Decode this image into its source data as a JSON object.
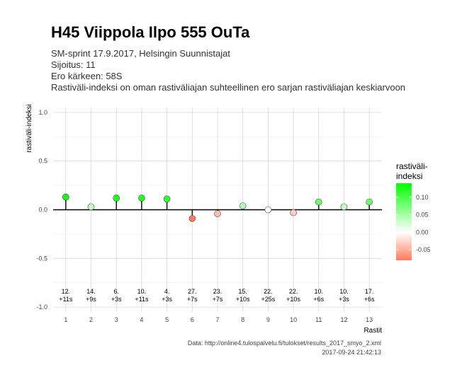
{
  "header": {
    "title": "H45 Viippola Ilpo 555 OuTa",
    "subtitle_lines": [
      "SM-sprint 17.9.2017, Helsingin Suunnistajat",
      "Sijoitus: 11",
      "Ero kärkeen: 58S",
      "Rastiväli-indeksi on oman rastiväliajan suhteellinen ero sarjan rastiväliajan keskiarvoon"
    ]
  },
  "footer": {
    "source": "Data: http://online4.tulospalvelu.fi/tulokset/results_2017_smyo_2.xml",
    "timestamp": "2017-09-24 21:42:13"
  },
  "colors": {
    "high": "#00ff00",
    "mid": "#ffffff",
    "low": "#ff7b5c",
    "point_stroke": "#444444",
    "zero_line": "#000000"
  },
  "chart_data": {
    "type": "scatter",
    "xlabel": "Rastit",
    "ylabel": "rastiväli-indeksi",
    "ylim": [
      -1.05,
      1.05
    ],
    "y_ticks": [
      -1.0,
      -0.5,
      0.0,
      0.5,
      1.0
    ],
    "y_tick_labels": [
      "-1.0",
      "-0.5",
      "0.0",
      "0.5",
      "1.0"
    ],
    "x": [
      1,
      2,
      3,
      4,
      5,
      6,
      7,
      8,
      9,
      10,
      11,
      12,
      13
    ],
    "x_tick_labels": [
      "1",
      "2",
      "3",
      "4",
      "5",
      "6",
      "7",
      "8",
      "9",
      "10",
      "11",
      "12",
      "13"
    ],
    "values": [
      0.13,
      0.03,
      0.12,
      0.12,
      0.11,
      -0.09,
      -0.04,
      0.04,
      0.0,
      -0.03,
      0.08,
      0.03,
      0.08
    ],
    "annotations": [
      [
        "12.",
        "+11s"
      ],
      [
        "14.",
        "+9s"
      ],
      [
        "6.",
        "+3s"
      ],
      [
        "10.",
        "+11s"
      ],
      [
        "4.",
        "+3s"
      ],
      [
        "27.",
        "+7s"
      ],
      [
        "23.",
        "+7s"
      ],
      [
        "15.",
        "+10s"
      ],
      [
        "22.",
        "+25s"
      ],
      [
        "22.",
        "+10s"
      ],
      [
        "10.",
        "+6s"
      ],
      [
        "10.",
        "+3s"
      ],
      [
        "17.",
        "+6s"
      ]
    ],
    "grid": true,
    "legend": {
      "title_lines": [
        "rastiväli-",
        "indeksi"
      ],
      "range": [
        -0.08,
        0.14
      ],
      "ticks": [
        0.1,
        0.05,
        0.0,
        -0.05
      ],
      "tick_labels": [
        "0.10",
        "0.05",
        "0.00",
        "-0.05"
      ],
      "placement": "right"
    }
  }
}
